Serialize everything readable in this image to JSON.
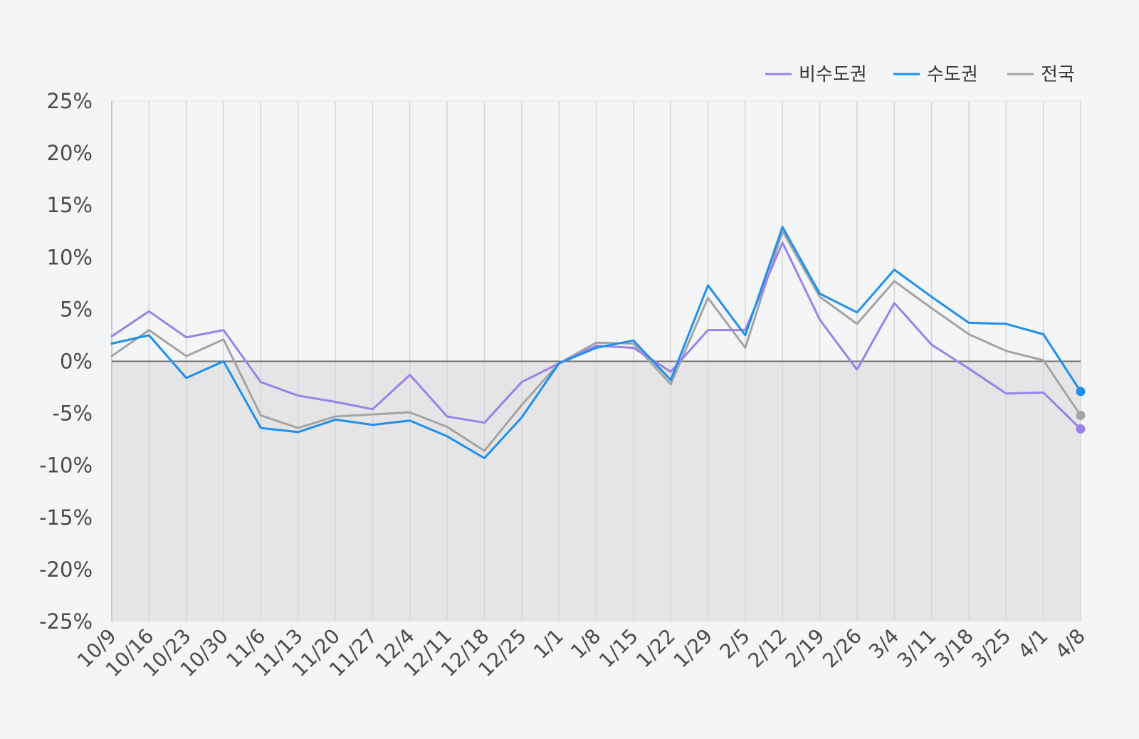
{
  "chart_data": {
    "type": "line",
    "title": "",
    "xlabel": "",
    "ylabel": "",
    "ylim": [
      -25,
      25
    ],
    "y_ticks": [
      25,
      20,
      15,
      10,
      5,
      0,
      -5,
      -10,
      -15,
      -20,
      -25
    ],
    "y_tick_labels": [
      "25%",
      "20%",
      "15%",
      "10%",
      "5%",
      "0%",
      "-5%",
      "-10%",
      "-15%",
      "-20%",
      "-25%"
    ],
    "grid": "vertical",
    "legend_position": "top-right",
    "negative_region_shaded": true,
    "categories": [
      "10/9",
      "10/16",
      "10/23",
      "10/30",
      "11/6",
      "11/13",
      "11/20",
      "11/27",
      "12/4",
      "12/11",
      "12/18",
      "12/25",
      "1/1",
      "1/8",
      "1/15",
      "1/22",
      "1/29",
      "2/5",
      "2/12",
      "2/19",
      "2/26",
      "3/4",
      "3/11",
      "3/18",
      "3/25",
      "4/1",
      "4/8"
    ],
    "series": [
      {
        "name": "비수도권",
        "color": "#9b82e8",
        "values": [
          2.4,
          4.8,
          2.3,
          3.0,
          -2.0,
          -3.3,
          -3.9,
          -4.6,
          -1.3,
          -5.3,
          -5.9,
          -2.0,
          -0.2,
          1.5,
          1.3,
          -1.0,
          3.0,
          3.0,
          11.4,
          4.0,
          -0.8,
          5.6,
          1.6,
          -0.7,
          -3.1,
          -3.0,
          -6.5
        ]
      },
      {
        "name": "수도권",
        "color": "#1f8fef",
        "values": [
          1.7,
          2.5,
          -1.6,
          0.0,
          -6.4,
          -6.8,
          -5.6,
          -6.1,
          -5.7,
          -7.2,
          -9.3,
          -5.4,
          -0.2,
          1.3,
          2.0,
          -1.8,
          7.3,
          2.5,
          12.9,
          6.5,
          4.7,
          8.8,
          6.2,
          3.7,
          3.6,
          2.6,
          -2.9
        ]
      },
      {
        "name": "전국",
        "color": "#a4a4a4",
        "values": [
          0.5,
          3.0,
          0.5,
          2.1,
          -5.2,
          -6.4,
          -5.3,
          -5.1,
          -4.9,
          -6.3,
          -8.6,
          -4.2,
          -0.2,
          1.8,
          1.7,
          -2.2,
          6.1,
          1.3,
          12.5,
          6.2,
          3.6,
          7.7,
          5.1,
          2.6,
          1.0,
          0.1,
          -5.2
        ]
      }
    ]
  }
}
